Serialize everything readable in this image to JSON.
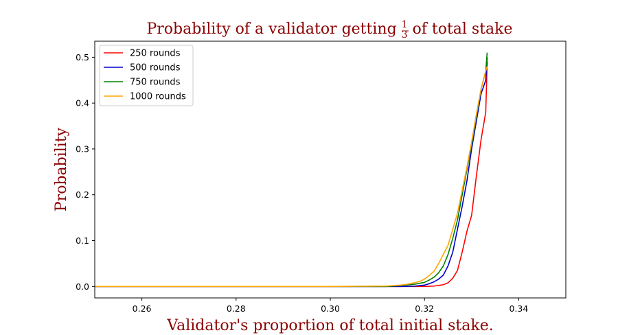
{
  "chart_data": {
    "type": "line",
    "title_prefix": "Probability of a validator getting ",
    "title_fraction_num": "1",
    "title_fraction_den": "3",
    "title_suffix": " of total stake",
    "xlabel": "Validator's proportion of total initial stake.",
    "ylabel": "Probability",
    "xlim": [
      0.25,
      0.35
    ],
    "ylim": [
      -0.025,
      0.535
    ],
    "xticks": [
      0.26,
      0.28,
      0.3,
      0.32,
      0.34
    ],
    "xtick_labels": [
      "0.26",
      "0.28",
      "0.30",
      "0.32",
      "0.34"
    ],
    "yticks": [
      0.0,
      0.1,
      0.2,
      0.3,
      0.4,
      0.5
    ],
    "ytick_labels": [
      "0.0",
      "0.1",
      "0.2",
      "0.3",
      "0.4",
      "0.5"
    ],
    "grid": false,
    "legend_position": "top-left",
    "series": [
      {
        "name": "250 rounds",
        "color": "#ff0000",
        "x": [
          0.25,
          0.3,
          0.315,
          0.318,
          0.32,
          0.322,
          0.323,
          0.324,
          0.325,
          0.326,
          0.327,
          0.328,
          0.329,
          0.33,
          0.331,
          0.332,
          0.333,
          0.3333
        ],
        "y": [
          0.0,
          0.0,
          0.0,
          0.0,
          0.0,
          0.001,
          0.002,
          0.004,
          0.008,
          0.018,
          0.035,
          0.075,
          0.12,
          0.155,
          0.24,
          0.32,
          0.38,
          0.49
        ]
      },
      {
        "name": "500 rounds",
        "color": "#0000cd",
        "x": [
          0.25,
          0.3,
          0.315,
          0.318,
          0.32,
          0.321,
          0.322,
          0.323,
          0.324,
          0.325,
          0.326,
          0.327,
          0.328,
          0.329,
          0.33,
          0.331,
          0.332,
          0.333,
          0.3333
        ],
        "y": [
          0.0,
          0.0,
          0.0,
          0.001,
          0.003,
          0.006,
          0.01,
          0.016,
          0.025,
          0.045,
          0.075,
          0.125,
          0.175,
          0.23,
          0.3,
          0.36,
          0.42,
          0.45,
          0.5
        ]
      },
      {
        "name": "750 rounds",
        "color": "#008000",
        "x": [
          0.25,
          0.3,
          0.312,
          0.315,
          0.318,
          0.32,
          0.321,
          0.322,
          0.323,
          0.324,
          0.325,
          0.326,
          0.327,
          0.328,
          0.329,
          0.33,
          0.331,
          0.332,
          0.333,
          0.3333
        ],
        "y": [
          0.0,
          0.0,
          0.0,
          0.002,
          0.005,
          0.009,
          0.014,
          0.02,
          0.03,
          0.045,
          0.07,
          0.105,
          0.145,
          0.2,
          0.255,
          0.31,
          0.37,
          0.43,
          0.47,
          0.51
        ]
      },
      {
        "name": "1000 rounds",
        "color": "#ffa500",
        "x": [
          0.25,
          0.3,
          0.312,
          0.315,
          0.317,
          0.319,
          0.32,
          0.321,
          0.322,
          0.323,
          0.324,
          0.325,
          0.326,
          0.327,
          0.328,
          0.329,
          0.33,
          0.331,
          0.332,
          0.333,
          0.3333
        ],
        "y": [
          0.0,
          0.0,
          0.001,
          0.003,
          0.006,
          0.011,
          0.016,
          0.024,
          0.033,
          0.05,
          0.07,
          0.09,
          0.125,
          0.16,
          0.21,
          0.26,
          0.315,
          0.375,
          0.43,
          0.47,
          0.48
        ]
      }
    ]
  }
}
